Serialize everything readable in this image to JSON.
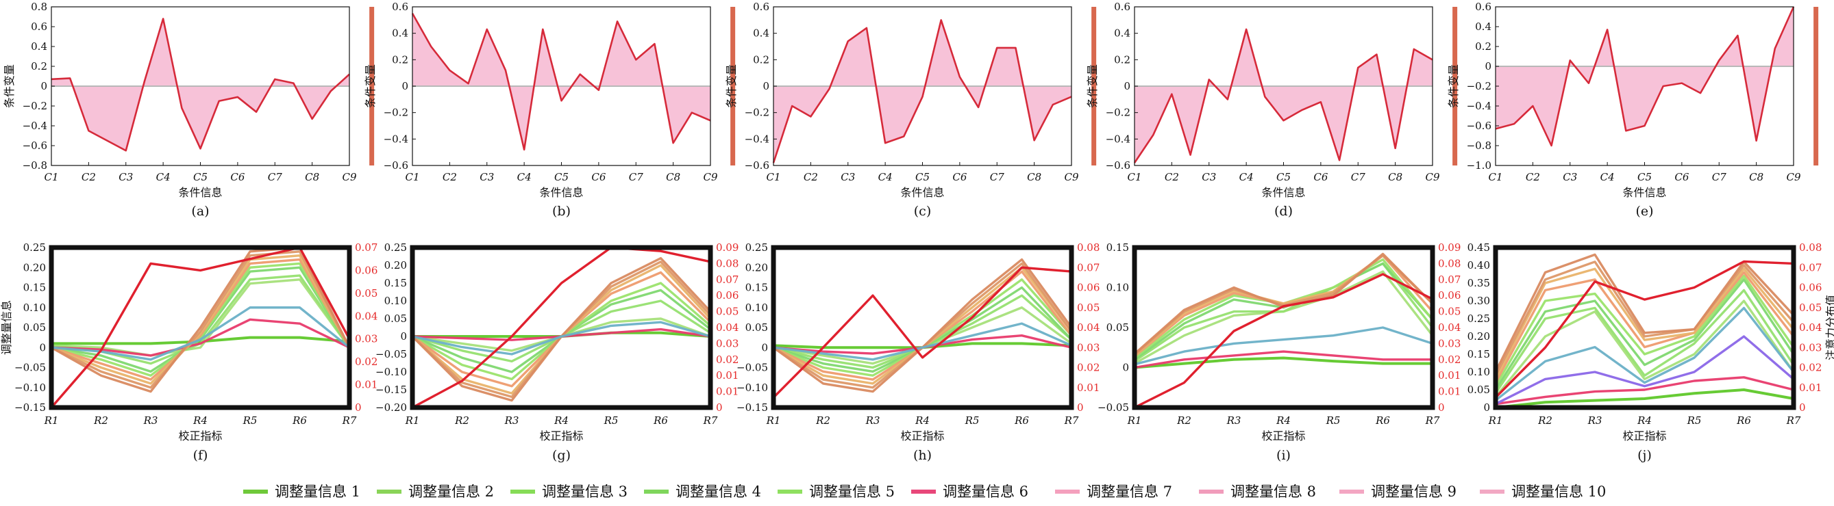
{
  "chart_data": [
    {
      "panel": "(a)",
      "type": "area",
      "ylabel": "条件变量",
      "xlabel": "条件信息",
      "ylim": [
        -0.8,
        0.8
      ],
      "yticks": [
        "-0.8",
        "-0.6",
        "-0.4",
        "-0.2",
        "0",
        "0.2",
        "0.4",
        "0.6",
        "0.8"
      ],
      "x_ticks": [
        "C1",
        "C2",
        "C3",
        "C4",
        "C5",
        "C6",
        "C7",
        "C8",
        "C9"
      ],
      "marker_x": 8.6,
      "values": [
        0.07,
        0.08,
        -0.45,
        -0.55,
        -0.65,
        0.05,
        0.68,
        -0.22,
        -0.63,
        -0.15,
        -0.11,
        -0.26,
        0.07,
        0.03,
        -0.33,
        -0.05,
        0.12
      ]
    },
    {
      "panel": "(b)",
      "type": "area",
      "ylabel": "条件变量",
      "xlabel": "条件信息",
      "ylim": [
        -0.6,
        0.6
      ],
      "yticks": [
        "-0.6",
        "-0.4",
        "-0.2",
        "0",
        "0.2",
        "0.4",
        "0.6"
      ],
      "x_ticks": [
        "C1",
        "C2",
        "C3",
        "C4",
        "C5",
        "C6",
        "C7",
        "C8",
        "C9"
      ],
      "marker_x": 8.6,
      "values": [
        0.55,
        0.3,
        0.12,
        0.02,
        0.43,
        0.12,
        -0.48,
        0.43,
        -0.11,
        0.09,
        -0.03,
        0.49,
        0.2,
        0.32,
        -0.43,
        -0.2,
        -0.26
      ]
    },
    {
      "panel": "(c)",
      "type": "area",
      "ylabel": "条件变量",
      "xlabel": "条件信息",
      "ylim": [
        -0.6,
        0.6
      ],
      "yticks": [
        "-0.6",
        "-0.4",
        "-0.2",
        "0",
        "0.2",
        "0.4",
        "0.6"
      ],
      "x_ticks": [
        "C1",
        "C2",
        "C3",
        "C4",
        "C5",
        "C6",
        "C7",
        "C8",
        "C9"
      ],
      "marker_x": 8.6,
      "values": [
        -0.58,
        -0.15,
        -0.23,
        -0.02,
        0.34,
        0.44,
        -0.43,
        -0.38,
        -0.08,
        0.5,
        0.07,
        -0.16,
        0.29,
        0.29,
        -0.41,
        -0.14,
        -0.08
      ]
    },
    {
      "panel": "(d)",
      "type": "area",
      "ylabel": "条件变量",
      "xlabel": "条件信息",
      "ylim": [
        -0.6,
        0.6
      ],
      "yticks": [
        "-0.6",
        "-0.4",
        "-0.2",
        "0",
        "0.2",
        "0.4",
        "0.6"
      ],
      "x_ticks": [
        "C1",
        "C2",
        "C3",
        "C4",
        "C5",
        "C6",
        "C7",
        "C8",
        "C9"
      ],
      "marker_x": 8.6,
      "values": [
        -0.58,
        -0.37,
        -0.06,
        -0.52,
        0.05,
        -0.1,
        0.43,
        -0.08,
        -0.26,
        -0.18,
        -0.12,
        -0.56,
        0.14,
        0.24,
        -0.47,
        0.28,
        0.2
      ]
    },
    {
      "panel": "(e)",
      "type": "area",
      "ylabel": "条件变量",
      "xlabel": "条件信息",
      "ylim": [
        -1.0,
        0.6
      ],
      "yticks": [
        "-1.0",
        "-0.8",
        "-0.6",
        "-0.4",
        "-0.2",
        "0",
        "0.2",
        "0.4",
        "0.6"
      ],
      "x_ticks": [
        "C1",
        "C2",
        "C3",
        "C4",
        "C5",
        "C6",
        "C7",
        "C8",
        "C9"
      ],
      "marker_x": 8.6,
      "values": [
        -0.63,
        -0.58,
        -0.4,
        -0.8,
        0.06,
        -0.17,
        0.37,
        -0.65,
        -0.6,
        -0.2,
        -0.17,
        -0.27,
        0.06,
        0.31,
        -0.75,
        0.18,
        0.6
      ]
    },
    {
      "panel": "(f)",
      "type": "line",
      "ylabel": "调整量信息",
      "xlabel": "校正指标",
      "y2label": "",
      "ylim": [
        -0.15,
        0.25
      ],
      "yticks": [
        "-0.15",
        "-0.10",
        "-0.05",
        "0",
        "0.05",
        "0.10",
        "0.15",
        "0.20",
        "0.25"
      ],
      "y2lim": [
        0,
        0.07
      ],
      "y2ticks": [
        "0",
        "0.01",
        "0.02",
        "0.03",
        "0.04",
        "0.05",
        "0.06",
        "0.07"
      ],
      "x_ticks": [
        "R1",
        "R2",
        "R3",
        "R4",
        "R5",
        "R6",
        "R7"
      ],
      "series": [
        {
          "values": [
            0.01,
            0.01,
            0.01,
            0.015,
            0.025,
            0.025,
            0.015
          ]
        },
        {
          "values": [
            0.005,
            0.0,
            -0.02,
            0.0,
            0.16,
            0.17,
            0.0
          ]
        },
        {
          "values": [
            0.005,
            -0.01,
            -0.04,
            0.01,
            0.17,
            0.18,
            0.0
          ]
        },
        {
          "values": [
            0.0,
            -0.02,
            -0.06,
            0.02,
            0.19,
            0.2,
            0.0
          ]
        },
        {
          "values": [
            0.0,
            -0.03,
            -0.07,
            0.025,
            0.2,
            0.21,
            0.0
          ]
        },
        {
          "values": [
            0.0,
            -0.005,
            -0.02,
            0.01,
            0.07,
            0.06,
            0.0
          ]
        },
        {
          "values": [
            0.0,
            -0.04,
            -0.08,
            0.03,
            0.21,
            0.22,
            0.0
          ]
        },
        {
          "values": [
            0.0,
            -0.05,
            -0.09,
            0.035,
            0.22,
            0.23,
            0.0
          ]
        },
        {
          "values": [
            0.0,
            -0.06,
            -0.1,
            0.04,
            0.23,
            0.24,
            0.0
          ]
        },
        {
          "values": [
            0.0,
            -0.07,
            -0.11,
            0.05,
            0.24,
            0.25,
            0.0
          ]
        },
        {
          "values": [
            0.0,
            -0.01,
            -0.03,
            0.02,
            0.1,
            0.1,
            0.0
          ]
        }
      ],
      "attention": [
        0.0,
        0.025,
        0.063,
        0.06,
        0.065,
        0.07,
        0.03
      ]
    },
    {
      "panel": "(g)",
      "type": "line",
      "ylabel": "",
      "xlabel": "校正指标",
      "y2label": "",
      "ylim": [
        -0.2,
        0.25
      ],
      "yticks": [
        "-0.20",
        "-0.15",
        "-0.10",
        "-0.05",
        "0",
        "0.05",
        "0.10",
        "0.15",
        "0.20",
        "0.25"
      ],
      "y2lim": [
        0,
        0.09
      ],
      "y2ticks": [
        "0",
        "0.01",
        "0.01",
        "0.02",
        "0.03",
        "0.04",
        "0.05",
        "0.06",
        "0.07",
        "0.08",
        "0.09"
      ],
      "x_ticks": [
        "R1",
        "R2",
        "R3",
        "R4",
        "R5",
        "R6",
        "R7"
      ],
      "series": [
        {
          "values": [
            0.0,
            0.0,
            0.0,
            0.0,
            0.01,
            0.01,
            0.0
          ]
        },
        {
          "values": [
            0.0,
            -0.02,
            -0.04,
            0.0,
            0.04,
            0.05,
            0.0
          ]
        },
        {
          "values": [
            0.0,
            -0.04,
            -0.07,
            0.0,
            0.07,
            0.1,
            0.01
          ]
        },
        {
          "values": [
            0.0,
            -0.06,
            -0.1,
            0.0,
            0.09,
            0.13,
            0.02
          ]
        },
        {
          "values": [
            0.0,
            -0.08,
            -0.12,
            0.0,
            0.1,
            0.15,
            0.03
          ]
        },
        {
          "values": [
            0.0,
            -0.005,
            -0.01,
            0.0,
            0.01,
            0.02,
            0.0
          ]
        },
        {
          "values": [
            0.0,
            -0.1,
            -0.14,
            0.0,
            0.12,
            0.18,
            0.04
          ]
        },
        {
          "values": [
            0.0,
            -0.12,
            -0.16,
            0.0,
            0.13,
            0.2,
            0.05
          ]
        },
        {
          "values": [
            0.0,
            -0.13,
            -0.17,
            0.0,
            0.14,
            0.21,
            0.06
          ]
        },
        {
          "values": [
            0.0,
            -0.14,
            -0.18,
            0.0,
            0.15,
            0.22,
            0.07
          ]
        },
        {
          "values": [
            0.0,
            -0.03,
            -0.05,
            0.0,
            0.03,
            0.04,
            0.0
          ]
        }
      ],
      "attention": [
        0.0,
        0.015,
        0.04,
        0.07,
        0.09,
        0.088,
        0.082
      ]
    },
    {
      "panel": "(h)",
      "type": "line",
      "ylabel": "",
      "xlabel": "校正指标",
      "y2label": "",
      "ylim": [
        -0.15,
        0.25
      ],
      "yticks": [
        "-0.15",
        "-0.10",
        "-0.05",
        "0",
        "0.05",
        "0.10",
        "0.15",
        "0.20",
        "0.25"
      ],
      "y2lim": [
        0,
        0.08
      ],
      "y2ticks": [
        "0",
        "0.01",
        "0.02",
        "0.03",
        "0.04",
        "0.05",
        "0.06",
        "0.07",
        "0.08"
      ],
      "x_ticks": [
        "R1",
        "R2",
        "R3",
        "R4",
        "R5",
        "R6",
        "R7"
      ],
      "series": [
        {
          "values": [
            0.005,
            0.0,
            0.0,
            0.0,
            0.01,
            0.01,
            0.005
          ]
        },
        {
          "values": [
            0.0,
            -0.02,
            -0.04,
            0.0,
            0.05,
            0.1,
            0.01
          ]
        },
        {
          "values": [
            0.0,
            -0.03,
            -0.05,
            0.0,
            0.06,
            0.13,
            0.02
          ]
        },
        {
          "values": [
            0.0,
            -0.04,
            -0.06,
            0.0,
            0.07,
            0.15,
            0.02
          ]
        },
        {
          "values": [
            0.0,
            -0.05,
            -0.07,
            0.0,
            0.08,
            0.17,
            0.03
          ]
        },
        {
          "values": [
            0.0,
            -0.01,
            -0.015,
            0.0,
            0.02,
            0.03,
            0.0
          ]
        },
        {
          "values": [
            0.0,
            -0.06,
            -0.08,
            0.0,
            0.09,
            0.19,
            0.03
          ]
        },
        {
          "values": [
            0.0,
            -0.07,
            -0.09,
            0.0,
            0.1,
            0.2,
            0.04
          ]
        },
        {
          "values": [
            0.0,
            -0.08,
            -0.1,
            0.0,
            0.11,
            0.21,
            0.04
          ]
        },
        {
          "values": [
            0.0,
            -0.09,
            -0.11,
            0.0,
            0.12,
            0.22,
            0.05
          ]
        },
        {
          "values": [
            0.0,
            -0.015,
            -0.03,
            0.0,
            0.03,
            0.06,
            0.005
          ]
        }
      ],
      "attention": [
        0.005,
        0.03,
        0.056,
        0.025,
        0.045,
        0.07,
        0.068
      ]
    },
    {
      "panel": "(i)",
      "type": "line",
      "ylabel": "",
      "xlabel": "校正指标",
      "y2label": "",
      "ylim": [
        -0.05,
        0.15
      ],
      "yticks": [
        "-0.05",
        "0",
        "0.05",
        "0.10",
        "0.15"
      ],
      "y2lim": [
        0,
        0.09
      ],
      "y2ticks": [
        "0",
        "0.01",
        "0.01",
        "0.02",
        "0.03",
        "0.04",
        "0.05",
        "0.06",
        "0.07",
        "0.08",
        "0.09"
      ],
      "x_ticks": [
        "R1",
        "R2",
        "R3",
        "R4",
        "R5",
        "R6",
        "R7"
      ],
      "series": [
        {
          "values": [
            0.0,
            0.005,
            0.01,
            0.012,
            0.008,
            0.005,
            0.005
          ]
        },
        {
          "values": [
            0.005,
            0.04,
            0.065,
            0.07,
            0.09,
            0.12,
            0.04
          ]
        },
        {
          "values": [
            0.008,
            0.05,
            0.07,
            0.07,
            0.1,
            0.13,
            0.05
          ]
        },
        {
          "values": [
            0.01,
            0.055,
            0.085,
            0.075,
            0.1,
            0.13,
            0.06
          ]
        },
        {
          "values": [
            0.012,
            0.06,
            0.09,
            0.08,
            0.1,
            0.135,
            0.06
          ]
        },
        {
          "values": [
            0.0,
            0.01,
            0.015,
            0.02,
            0.015,
            0.01,
            0.01
          ]
        },
        {
          "values": [
            0.014,
            0.065,
            0.093,
            0.08,
            0.095,
            0.14,
            0.07
          ]
        },
        {
          "values": [
            0.015,
            0.068,
            0.096,
            0.08,
            0.095,
            0.14,
            0.08
          ]
        },
        {
          "values": [
            0.016,
            0.07,
            0.098,
            0.078,
            0.093,
            0.14,
            0.08
          ]
        },
        {
          "values": [
            0.017,
            0.072,
            0.1,
            0.076,
            0.09,
            0.142,
            0.08
          ]
        },
        {
          "values": [
            0.004,
            0.02,
            0.03,
            0.035,
            0.04,
            0.05,
            0.03
          ]
        }
      ],
      "attention": [
        0.0,
        0.014,
        0.043,
        0.057,
        0.062,
        0.075,
        0.061
      ]
    },
    {
      "panel": "(j)",
      "type": "line",
      "ylabel": "",
      "xlabel": "校正指标",
      "y2label": "注意力分布值",
      "ylim": [
        0,
        0.45
      ],
      "yticks": [
        "0",
        "0.05",
        "0.10",
        "0.15",
        "0.20",
        "0.25",
        "0.30",
        "0.35",
        "0.40",
        "0.45"
      ],
      "y2lim": [
        0,
        0.08
      ],
      "y2ticks": [
        "0",
        "0.01",
        "0.02",
        "0.03",
        "0.04",
        "0.05",
        "0.06",
        "0.07",
        "0.08"
      ],
      "x_ticks": [
        "R1",
        "R2",
        "R3",
        "R4",
        "R5",
        "R6",
        "R7"
      ],
      "series": [
        {
          "values": [
            0.0,
            0.015,
            0.02,
            0.025,
            0.04,
            0.05,
            0.025
          ]
        },
        {
          "values": [
            0.03,
            0.2,
            0.27,
            0.08,
            0.15,
            0.3,
            0.1
          ]
        },
        {
          "values": [
            0.04,
            0.25,
            0.28,
            0.09,
            0.18,
            0.33,
            0.12
          ]
        },
        {
          "values": [
            0.05,
            0.27,
            0.3,
            0.12,
            0.19,
            0.36,
            0.15
          ]
        },
        {
          "values": [
            0.06,
            0.3,
            0.32,
            0.15,
            0.2,
            0.37,
            0.17
          ]
        },
        {
          "values": [
            0.01,
            0.03,
            0.045,
            0.05,
            0.075,
            0.085,
            0.05
          ]
        },
        {
          "values": [
            0.07,
            0.33,
            0.36,
            0.17,
            0.21,
            0.38,
            0.2
          ]
        },
        {
          "values": [
            0.08,
            0.35,
            0.39,
            0.19,
            0.21,
            0.39,
            0.22
          ]
        },
        {
          "values": [
            0.09,
            0.36,
            0.41,
            0.2,
            0.22,
            0.4,
            0.24
          ]
        },
        {
          "values": [
            0.1,
            0.38,
            0.43,
            0.21,
            0.22,
            0.41,
            0.26
          ]
        },
        {
          "values": [
            0.02,
            0.13,
            0.17,
            0.07,
            0.14,
            0.28,
            0.1
          ]
        },
        {
          "values": [
            0.01,
            0.08,
            0.1,
            0.06,
            0.1,
            0.2,
            0.08
          ]
        }
      ],
      "attention": [
        0.005,
        0.03,
        0.063,
        0.054,
        0.06,
        0.073,
        0.072
      ]
    }
  ],
  "legend": [
    {
      "label": "调整量信息 1",
      "color": "#6fc93a"
    },
    {
      "label": "调整量信息 2",
      "color": "#8ad458"
    },
    {
      "label": "调整量信息 3",
      "color": "#86dc57"
    },
    {
      "label": "调整量信息 4",
      "color": "#7fd65c"
    },
    {
      "label": "调整量信息 5",
      "color": "#8fe060"
    },
    {
      "label": "调整量信息 6",
      "color": "#e8477a"
    },
    {
      "label": "调整量信息 7",
      "color": "#f4a0bd"
    },
    {
      "label": "调整量信息 8",
      "color": "#f19cbb"
    },
    {
      "label": "调整量信息 9",
      "color": "#f3a6c2"
    },
    {
      "label": "调整量信息 10",
      "color": "#f2a8c3"
    }
  ],
  "colors": {
    "line_red": "#d62a3a",
    "fill_pink": "#f7c2d8",
    "marker": "#d8684e",
    "attention": "#e0202e",
    "zero_line": "#b8b8b8"
  }
}
